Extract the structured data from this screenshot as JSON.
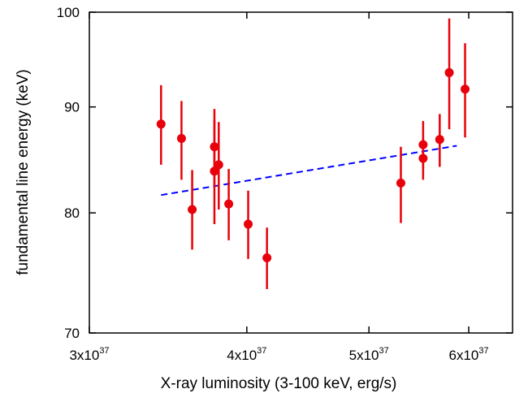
{
  "chart_data": {
    "type": "scatter",
    "title": "",
    "xlabel": "X-ray luminosity (3-100 keV, erg/s)",
    "ylabel": "fundamental line energy (keV)",
    "x_scale": "log",
    "y_scale": "log",
    "xlim": [
      3e+37,
      6.5e+37
    ],
    "ylim": [
      70,
      100
    ],
    "grid": false,
    "legend": "none",
    "x_ticks": [
      {
        "value": 3e+37,
        "mantissa": "3x10",
        "exponent": "37"
      },
      {
        "value": 4e+37,
        "mantissa": "4x10",
        "exponent": "37"
      },
      {
        "value": 5e+37,
        "mantissa": "5x10",
        "exponent": "37"
      },
      {
        "value": 6e+37,
        "mantissa": "6x10",
        "exponent": "37"
      }
    ],
    "y_ticks": [
      {
        "value": 70,
        "label": "70"
      },
      {
        "value": 80,
        "label": "80"
      },
      {
        "value": 90,
        "label": "90"
      },
      {
        "value": 100,
        "label": "100"
      }
    ],
    "series": [
      {
        "color": "#e8000b",
        "marker": "circle",
        "points": [
          {
            "x": 3.42e+37,
            "y": 88.3,
            "ylo": 84.4,
            "yhi": 92.2
          },
          {
            "x": 3.55e+37,
            "y": 86.9,
            "ylo": 83.0,
            "yhi": 90.6
          },
          {
            "x": 3.62e+37,
            "y": 80.3,
            "ylo": 76.8,
            "yhi": 83.9
          },
          {
            "x": 3.77e+37,
            "y": 86.1,
            "ylo": 82.4,
            "yhi": 89.8
          },
          {
            "x": 3.77e+37,
            "y": 83.8,
            "ylo": 79.0,
            "yhi": 88.7
          },
          {
            "x": 3.8e+37,
            "y": 84.4,
            "ylo": 80.3,
            "yhi": 88.5
          },
          {
            "x": 3.87e+37,
            "y": 80.8,
            "ylo": 77.6,
            "yhi": 84.0
          },
          {
            "x": 4.01e+37,
            "y": 79.0,
            "ylo": 76.0,
            "yhi": 82.0
          },
          {
            "x": 4.15e+37,
            "y": 76.1,
            "ylo": 73.5,
            "yhi": 78.7
          },
          {
            "x": 5.3e+37,
            "y": 82.7,
            "ylo": 79.1,
            "yhi": 86.1
          },
          {
            "x": 5.52e+37,
            "y": 86.3,
            "ylo": 84.0,
            "yhi": 88.6
          },
          {
            "x": 5.52e+37,
            "y": 85.0,
            "ylo": 83.0,
            "yhi": 87.0
          },
          {
            "x": 5.69e+37,
            "y": 86.8,
            "ylo": 84.2,
            "yhi": 89.3
          },
          {
            "x": 5.79e+37,
            "y": 93.5,
            "ylo": 87.8,
            "yhi": 99.3
          },
          {
            "x": 5.96e+37,
            "y": 91.8,
            "ylo": 87.0,
            "yhi": 96.6
          }
        ]
      }
    ],
    "fit_line": {
      "style": "dashed",
      "color": "#0000ff",
      "x": [
        3.42e+37,
        5.87e+37
      ],
      "y": [
        81.6,
        86.2
      ]
    }
  }
}
